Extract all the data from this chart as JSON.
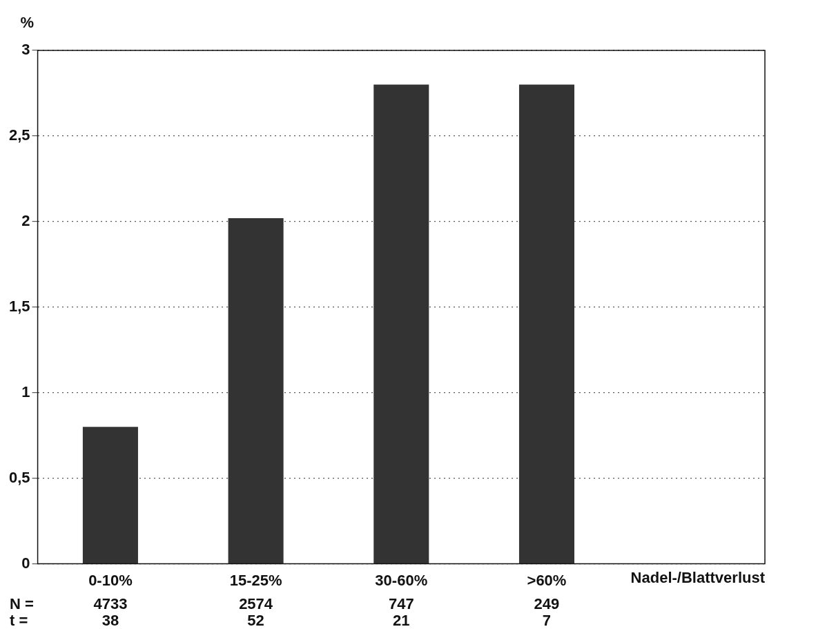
{
  "chart_data": {
    "type": "bar",
    "ylabel": "%",
    "xlabel": "Nadel-/Blattverlust",
    "categories": [
      "0-10%",
      "15-25%",
      "30-60%",
      ">60%"
    ],
    "values": [
      0.8,
      2.02,
      2.8,
      2.8
    ],
    "color": "#333333",
    "ylim": [
      0,
      3
    ],
    "yticks": [
      {
        "value": 0,
        "label": "0"
      },
      {
        "value": 0.5,
        "label": "0,5"
      },
      {
        "value": 1,
        "label": "1"
      },
      {
        "value": 1.5,
        "label": "1,5"
      },
      {
        "value": 2,
        "label": "2"
      },
      {
        "value": 2.5,
        "label": "2,5"
      },
      {
        "value": 3,
        "label": "3"
      }
    ],
    "grid": "y",
    "legend": false,
    "annotations": [
      "N =",
      "4733",
      "2574",
      "747",
      "249",
      "t =",
      "38",
      "52",
      "21",
      "7"
    ]
  }
}
